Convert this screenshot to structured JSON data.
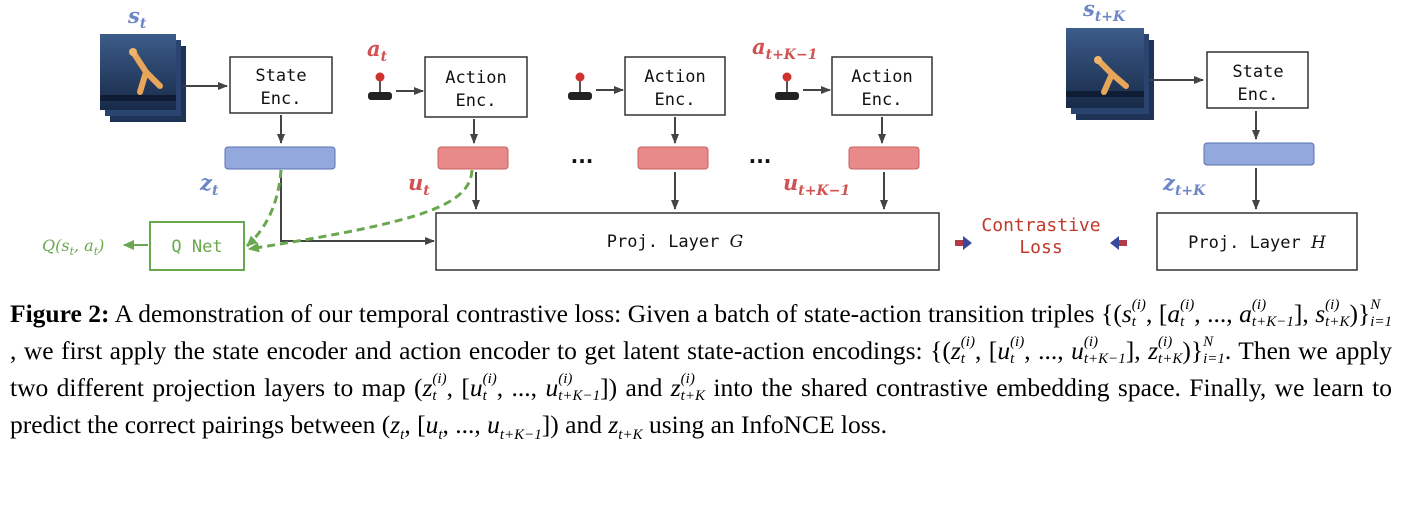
{
  "diagram": {
    "state_enc_label_1": "State",
    "state_enc_label_2": "Enc.",
    "action_enc_label_1": "Action",
    "action_enc_label_2": "Enc.",
    "proj_g_label": "Proj. Layer",
    "proj_g_symbol": "G",
    "proj_h_label": "Proj. Layer",
    "proj_h_symbol": "H",
    "qnet_label": "Q Net",
    "contrastive_label_1": "Contrastive",
    "contrastive_label_2": "Loss",
    "ellipsis": "...",
    "label_s": "s",
    "label_a": "a",
    "label_z": "z",
    "label_u": "u",
    "sub_t": "t",
    "sub_tK": "t+K",
    "sub_tK1": "t+K−1",
    "q_output": "Q(s",
    "q_output_mid": ", a",
    "q_output_end": ")",
    "colors": {
      "state_blue": "#6d86c6",
      "action_red": "#d05252",
      "qnet_green": "#6aa84f",
      "latent_blue_bar": "#93a8dc",
      "latent_red_bar": "#e88a8a",
      "contrastive_text": "#c0392b"
    },
    "icons": [
      "state-image-stack-icon",
      "joystick-icon",
      "arrow-icon"
    ]
  },
  "caption": {
    "figure_label": "Figure 2:",
    "part1": " A demonstration of our temporal contrastive loss: Given a batch of state-action transition triples",
    "part2": ", we first apply the state encoder and action encoder to get latent state-action encodings:",
    "part3": ". Then we apply two different projection layers to map",
    "part4": " and ",
    "part5": " into the shared contrastive embedding space. Finally, we learn to predict the correct pairings between ",
    "part6": " and ",
    "part7": " using an InfoNCE loss."
  }
}
